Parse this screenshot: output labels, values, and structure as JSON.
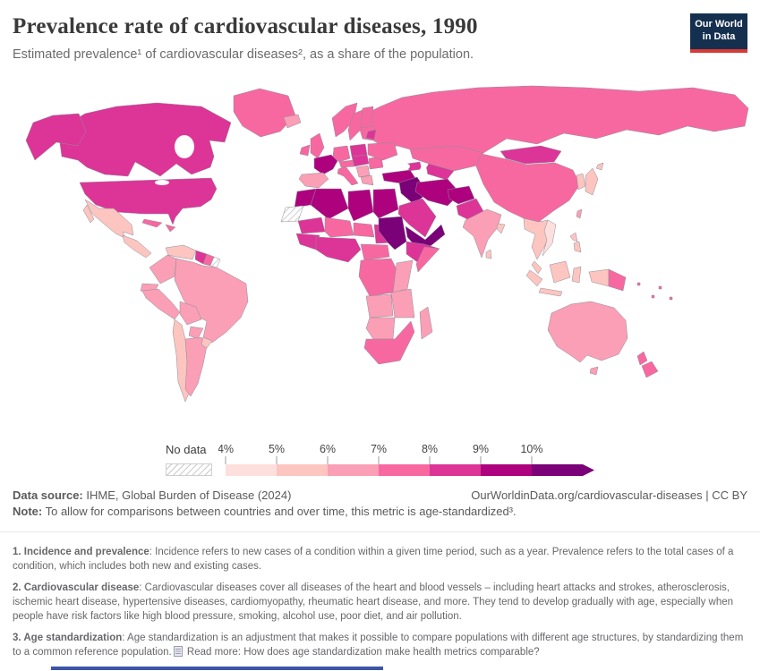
{
  "header": {
    "title": "Prevalence rate of cardiovascular diseases, 1990",
    "subtitle": "Estimated prevalence¹ of cardiovascular diseases², as a share of the population.",
    "logo": {
      "line1": "Our World",
      "line2": "in Data",
      "bg_color": "#15304e",
      "accent_color": "#d93a35"
    }
  },
  "legend": {
    "no_data_label": "No data",
    "tick_labels": [
      "4%",
      "5%",
      "6%",
      "7%",
      "8%",
      "9%",
      "10%"
    ]
  },
  "chart_data": {
    "type": "choropleth",
    "title": "Prevalence rate of cardiovascular diseases, 1990",
    "year": 1990,
    "unit": "% of population",
    "legend_bins": [
      {
        "range": "4–5%",
        "color": "#fde0dd"
      },
      {
        "range": "5–6%",
        "color": "#fcc5c0"
      },
      {
        "range": "6–7%",
        "color": "#fa9fb5"
      },
      {
        "range": "7–8%",
        "color": "#f768a1"
      },
      {
        "range": "8–9%",
        "color": "#dd3497"
      },
      {
        "range": "9–10%",
        "color": "#ae017e"
      },
      {
        "range": "10%+",
        "color": "#7a0177"
      }
    ],
    "regions": [
      {
        "name": "russia",
        "bin": "7–8%",
        "color": "#f768a1"
      },
      {
        "name": "canada",
        "bin": "8–9%",
        "color": "#dd3497"
      },
      {
        "name": "alaska",
        "bin": "8–9%",
        "color": "#dd3497"
      },
      {
        "name": "usa",
        "bin": "8–9%",
        "color": "#dd3497"
      },
      {
        "name": "greenland",
        "bin": "7–8%",
        "color": "#f768a1"
      },
      {
        "name": "mexico",
        "bin": "5–6%",
        "color": "#fcc5c0"
      },
      {
        "name": "central-america",
        "bin": "5–6%",
        "color": "#fcc5c0"
      },
      {
        "name": "cuba",
        "bin": "7–8%",
        "color": "#f768a1"
      },
      {
        "name": "hispaniola",
        "bin": "7–8%",
        "color": "#f768a1"
      },
      {
        "name": "venezuela",
        "bin": "5–6%",
        "color": "#fcc5c0"
      },
      {
        "name": "guyana",
        "bin": "8–9%",
        "color": "#dd3497"
      },
      {
        "name": "suriname",
        "bin": "7–8%",
        "color": "#f768a1"
      },
      {
        "name": "french-guiana",
        "bin": "No data",
        "color": "no-data"
      },
      {
        "name": "colombia",
        "bin": "6–7%",
        "color": "#fa9fb5"
      },
      {
        "name": "ecuador",
        "bin": "6–7%",
        "color": "#fa9fb5"
      },
      {
        "name": "peru",
        "bin": "6–7%",
        "color": "#fa9fb5"
      },
      {
        "name": "brazil",
        "bin": "6–7%",
        "color": "#fa9fb5"
      },
      {
        "name": "bolivia",
        "bin": "6–7%",
        "color": "#fa9fb5"
      },
      {
        "name": "paraguay",
        "bin": "6–7%",
        "color": "#fa9fb5"
      },
      {
        "name": "chile",
        "bin": "5–6%",
        "color": "#fcc5c0"
      },
      {
        "name": "argentina",
        "bin": "6–7%",
        "color": "#fa9fb5"
      },
      {
        "name": "uruguay",
        "bin": "5–6%",
        "color": "#fcc5c0"
      },
      {
        "name": "iceland",
        "bin": "6–7%",
        "color": "#fa9fb5"
      },
      {
        "name": "ireland",
        "bin": "7–8%",
        "color": "#f768a1"
      },
      {
        "name": "uk",
        "bin": "7–8%",
        "color": "#f768a1"
      },
      {
        "name": "norway",
        "bin": "7–8%",
        "color": "#f768a1"
      },
      {
        "name": "sweden",
        "bin": "7–8%",
        "color": "#f768a1"
      },
      {
        "name": "finland",
        "bin": "7–8%",
        "color": "#f768a1"
      },
      {
        "name": "baltic-states",
        "bin": "8–9%",
        "color": "#dd3497"
      },
      {
        "name": "denmark",
        "bin": "7–8%",
        "color": "#f768a1"
      },
      {
        "name": "germany",
        "bin": "7–8%",
        "color": "#f768a1"
      },
      {
        "name": "france",
        "bin": "9–10%",
        "color": "#ae017e"
      },
      {
        "name": "spain",
        "bin": "6–7%",
        "color": "#fa9fb5"
      },
      {
        "name": "italy",
        "bin": "7–8%",
        "color": "#f768a1"
      },
      {
        "name": "alps",
        "bin": "7–8%",
        "color": "#f768a1"
      },
      {
        "name": "poland",
        "bin": "8–9%",
        "color": "#dd3497"
      },
      {
        "name": "czech-hungary",
        "bin": "8–9%",
        "color": "#dd3497"
      },
      {
        "name": "romania-bulgaria",
        "bin": "7–8%",
        "color": "#f768a1"
      },
      {
        "name": "balkans-west",
        "bin": "6–7%",
        "color": "#fa9fb5"
      },
      {
        "name": "greece",
        "bin": "6–7%",
        "color": "#fa9fb5"
      },
      {
        "name": "ukraine",
        "bin": "7–8%",
        "color": "#f768a1"
      },
      {
        "name": "caucasus",
        "bin": "8–9%",
        "color": "#dd3497"
      },
      {
        "name": "kazakhstan",
        "bin": "7–8%",
        "color": "#f768a1"
      },
      {
        "name": "uzbekistan-turkmenistan",
        "bin": "8–9%",
        "color": "#dd3497"
      },
      {
        "name": "mongolia",
        "bin": "8–9%",
        "color": "#dd3497"
      },
      {
        "name": "china",
        "bin": "7–8%",
        "color": "#f768a1"
      },
      {
        "name": "korea",
        "bin": "5–6%",
        "color": "#fcc5c0"
      },
      {
        "name": "japan",
        "bin": "5–6%",
        "color": "#fcc5c0"
      },
      {
        "name": "taiwan",
        "bin": "6–7%",
        "color": "#fa9fb5"
      },
      {
        "name": "turkey",
        "bin": "9–10%",
        "color": "#ae017e"
      },
      {
        "name": "syria-iraq",
        "bin": "10%+",
        "color": "#7a0177"
      },
      {
        "name": "iran",
        "bin": "9–10%",
        "color": "#ae017e"
      },
      {
        "name": "afghanistan",
        "bin": "9–10%",
        "color": "#ae017e"
      },
      {
        "name": "pakistan",
        "bin": "8–9%",
        "color": "#dd3497"
      },
      {
        "name": "saudi-arabia",
        "bin": "8–9%",
        "color": "#dd3497"
      },
      {
        "name": "yemen-oman",
        "bin": "10%+",
        "color": "#7a0177"
      },
      {
        "name": "morocco",
        "bin": "9–10%",
        "color": "#ae017e"
      },
      {
        "name": "western-sahara",
        "bin": "No data",
        "color": "no-data"
      },
      {
        "name": "algeria",
        "bin": "9–10%",
        "color": "#ae017e"
      },
      {
        "name": "libya",
        "bin": "9–10%",
        "color": "#ae017e"
      },
      {
        "name": "egypt",
        "bin": "9–10%",
        "color": "#ae017e"
      },
      {
        "name": "mauritania",
        "bin": "8–9%",
        "color": "#dd3497"
      },
      {
        "name": "mali",
        "bin": "7–8%",
        "color": "#f768a1"
      },
      {
        "name": "niger",
        "bin": "7–8%",
        "color": "#f768a1"
      },
      {
        "name": "chad",
        "bin": "8–9%",
        "color": "#dd3497"
      },
      {
        "name": "sudan",
        "bin": "10%+",
        "color": "#7a0177"
      },
      {
        "name": "senegal-guinea",
        "bin": "8–9%",
        "color": "#dd3497"
      },
      {
        "name": "west-africa-coast",
        "bin": "8–9%",
        "color": "#dd3497"
      },
      {
        "name": "cameroon-car",
        "bin": "7–8%",
        "color": "#f768a1"
      },
      {
        "name": "ethiopia",
        "bin": "8–9%",
        "color": "#dd3497"
      },
      {
        "name": "somalia",
        "bin": "7–8%",
        "color": "#f768a1"
      },
      {
        "name": "drc",
        "bin": "7–8%",
        "color": "#f768a1"
      },
      {
        "name": "kenya-tanzania",
        "bin": "6–7%",
        "color": "#fa9fb5"
      },
      {
        "name": "angola",
        "bin": "6–7%",
        "color": "#fa9fb5"
      },
      {
        "name": "zambia-mozambique",
        "bin": "6–7%",
        "color": "#fa9fb5"
      },
      {
        "name": "namibia-botswana",
        "bin": "6–7%",
        "color": "#fa9fb5"
      },
      {
        "name": "south-africa",
        "bin": "7–8%",
        "color": "#f768a1"
      },
      {
        "name": "madagascar",
        "bin": "6–7%",
        "color": "#fa9fb5"
      },
      {
        "name": "india",
        "bin": "6–7%",
        "color": "#fa9fb5"
      },
      {
        "name": "bangladesh",
        "bin": "5–6%",
        "color": "#fcc5c0"
      },
      {
        "name": "sri-lanka",
        "bin": "5–6%",
        "color": "#fcc5c0"
      },
      {
        "name": "myanmar-thailand",
        "bin": "5–6%",
        "color": "#fcc5c0"
      },
      {
        "name": "vietnam",
        "bin": "4–5%",
        "color": "#fde0dd"
      },
      {
        "name": "malaysia",
        "bin": "5–6%",
        "color": "#fcc5c0"
      },
      {
        "name": "sumatra",
        "bin": "5–6%",
        "color": "#fcc5c0"
      },
      {
        "name": "java",
        "bin": "5–6%",
        "color": "#fcc5c0"
      },
      {
        "name": "borneo",
        "bin": "5–6%",
        "color": "#fcc5c0"
      },
      {
        "name": "sulawesi",
        "bin": "5–6%",
        "color": "#fcc5c0"
      },
      {
        "name": "philippines",
        "bin": "5–6%",
        "color": "#fcc5c0"
      },
      {
        "name": "west-papua",
        "bin": "5–6%",
        "color": "#fcc5c0"
      },
      {
        "name": "papua-new-guinea",
        "bin": "7–8%",
        "color": "#f768a1"
      },
      {
        "name": "australia",
        "bin": "6–7%",
        "color": "#fa9fb5"
      },
      {
        "name": "tasmania",
        "bin": "6–7%",
        "color": "#fa9fb5"
      },
      {
        "name": "new-zealand",
        "bin": "7–8%",
        "color": "#f768a1"
      },
      {
        "name": "pacific-islands",
        "bin": "7–8%",
        "color": "#f768a1"
      }
    ]
  },
  "footer": {
    "source_label": "Data source:",
    "source_text": "IHME, Global Burden of Disease (2024)",
    "link_text": "OurWorldinData.org/cardiovascular-diseases | CC BY",
    "note_label": "Note:",
    "note_text": "To allow for comparisons between countries and over time, this metric is age-standardized³."
  },
  "footnotes": [
    {
      "label": "1. Incidence and prevalence",
      "text": ": Incidence refers to new cases of a condition within a given time period, such as a year. Prevalence refers to the total cases of a condition, which includes both new and existing cases."
    },
    {
      "label": "2. Cardiovascular disease",
      "text": ": Cardiovascular diseases cover all diseases of the heart and blood vessels – including heart attacks and strokes, atherosclerosis, ischemic heart disease, hypertensive diseases, cardiomyopathy, rheumatic heart disease, and more. They tend to develop gradually with age, especially when people have risk factors like high blood pressure, smoking, alcohol use, poor diet, and air pollution."
    },
    {
      "label": "3. Age standardization",
      "text": ": Age standardization is an adjustment that makes it possible to compare populations with different age structures, by standardizing them to a common reference population.",
      "read_more": "Read more: How does age standardization make health metrics comparable?"
    }
  ]
}
